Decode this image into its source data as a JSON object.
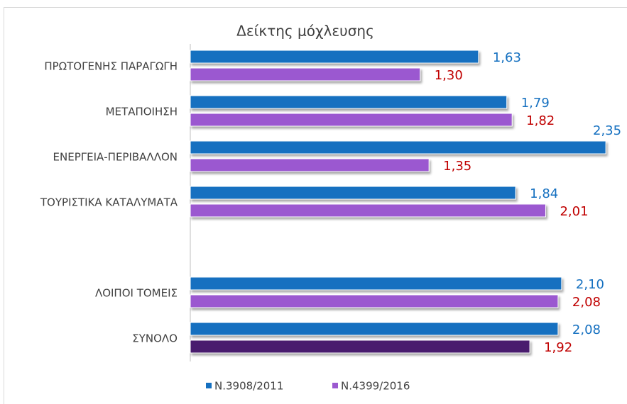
{
  "chart_data": {
    "type": "bar",
    "orientation": "horizontal",
    "title": "Δείκτης μόχλευσης",
    "categories": [
      "ΠΡΩΤΟΓΕΝΗΣ ΠΑΡΑΓΩΓΗ",
      "ΜΕΤΑΠΟΙΗΣΗ",
      "ΕΝΕΡΓΕΙΑ-ΠΕΡΙΒΑΛΛΟΝ",
      "ΤΟΥΡΙΣΤΙΚΑ ΚΑΤΑΛΥΜΑΤΑ",
      null,
      "ΛΟΙΠΟΙ ΤΟΜΕΙΣ",
      "ΣΥΝΟΛΟ"
    ],
    "series": [
      {
        "name": "Ν.3908/2011",
        "color": "#1570c0",
        "label_color": "#1570c0",
        "values": [
          1.63,
          1.79,
          2.35,
          1.84,
          null,
          2.1,
          2.08
        ],
        "value_labels": [
          "1,63",
          "1,79",
          "2,35",
          "1,84",
          null,
          "2,10",
          "2,08"
        ]
      },
      {
        "name": "Ν.4399/2016",
        "color": "#9b59d0",
        "label_color": "#c00000",
        "colors": [
          "#9b59d0",
          "#9b59d0",
          "#9b59d0",
          "#9b59d0",
          null,
          "#9b59d0",
          "#4a1d6e"
        ],
        "values": [
          1.3,
          1.82,
          1.35,
          2.01,
          null,
          2.08,
          1.92
        ],
        "value_labels": [
          "1,30",
          "1,82",
          "1,35",
          "2,01",
          null,
          "2,08",
          "1,92"
        ]
      }
    ],
    "legend": "bottom"
  }
}
